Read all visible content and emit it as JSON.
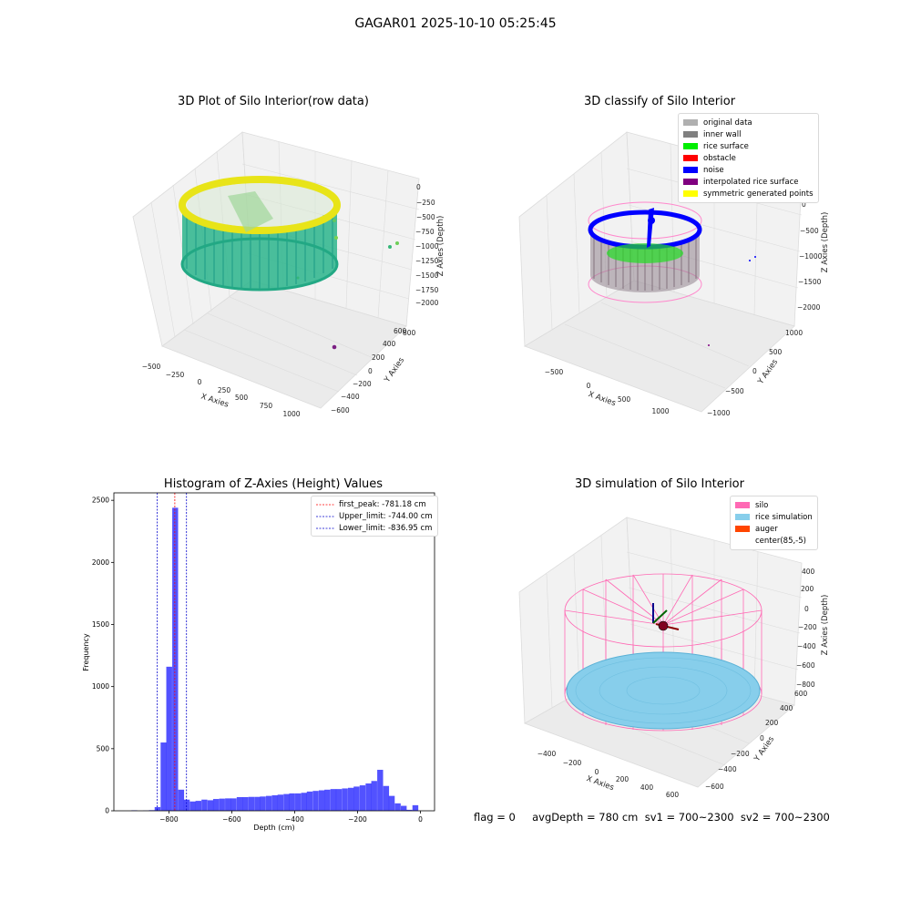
{
  "figure": {
    "title": "GAGAR01 2025-10-10 05:25:45"
  },
  "panel_raw": {
    "title": "3D Plot of Silo Interior(row data)",
    "xlabel": "X Axies",
    "ylabel": "Y Axies",
    "zlabel": "Z Axies (Depth)",
    "xticks": [
      "−500",
      "−250",
      "0",
      "250",
      "500",
      "750",
      "1000"
    ],
    "yticks": [
      "−600",
      "−400",
      "−200",
      "0",
      "200",
      "400",
      "600",
      "800"
    ],
    "zticks": [
      "0",
      "−250",
      "−500",
      "−750",
      "−1000",
      "−1250",
      "−1500",
      "−1750",
      "−2000"
    ]
  },
  "panel_classify": {
    "title": "3D classify of Silo Interior",
    "xlabel": "X Axies",
    "ylabel": "Y Axies",
    "zlabel": "Z Axies (Depth)",
    "xticks": [
      "−500",
      "0",
      "500",
      "1000"
    ],
    "yticks": [
      "−1000",
      "−500",
      "0",
      "500",
      "1000"
    ],
    "zticks": [
      "0",
      "−500",
      "−1000",
      "−1500",
      "−2000"
    ],
    "legend": [
      {
        "label": "original data",
        "color": "#b0b0b0"
      },
      {
        "label": "inner wall",
        "color": "#808080"
      },
      {
        "label": "rice surface",
        "color": "#00ee00"
      },
      {
        "label": "obstacle",
        "color": "#ff0000"
      },
      {
        "label": "noise",
        "color": "#0000ff"
      },
      {
        "label": "interpolated rice surface",
        "color": "#800080"
      },
      {
        "label": "symmetric generated points",
        "color": "#ffff00"
      }
    ]
  },
  "panel_sim": {
    "title": "3D simulation of Silo Interior",
    "xlabel": "X Axies",
    "ylabel": "Y Axies",
    "zlabel": "Z Axies (Depth)",
    "xticks": [
      "−400",
      "−200",
      "0",
      "200",
      "400",
      "600"
    ],
    "yticks": [
      "−600",
      "−400",
      "−200",
      "0",
      "200",
      "400",
      "600"
    ],
    "zticks": [
      "400",
      "200",
      "0",
      "−200",
      "−400",
      "−600",
      "−800"
    ],
    "legend": [
      {
        "label": "silo",
        "color": "#ff69b4"
      },
      {
        "label": "rice simulation",
        "color": "#87ceeb"
      },
      {
        "label": "auger",
        "color": "#ff4500"
      },
      {
        "label": "center(85,-5)",
        "color": ""
      }
    ]
  },
  "footer": {
    "text": "flag = 0     avgDepth = 780 cm  sv1 = 700~2300  sv2 = 700~2300"
  },
  "chart_data": {
    "type": "bar",
    "title": "Histogram of Z-Axies (Height) Values",
    "xlabel": "Depth (cm)",
    "ylabel": "Frequency",
    "xlim": [
      -975,
      45
    ],
    "ylim": [
      0,
      2560
    ],
    "xticks": [
      -800,
      -600,
      -400,
      -200,
      0
    ],
    "xtick_labels": [
      "−800",
      "−600",
      "−400",
      "−200",
      "0"
    ],
    "yticks": [
      0,
      500,
      1000,
      1500,
      2000,
      2500
    ],
    "bar_color": "#0000ff",
    "bin_width": 18.6,
    "bins": [
      [
        -910,
        4
      ],
      [
        -873,
        2
      ],
      [
        -854,
        5
      ],
      [
        -836,
        30
      ],
      [
        -817,
        550
      ],
      [
        -799,
        1160
      ],
      [
        -780,
        2440
      ],
      [
        -761,
        170
      ],
      [
        -743,
        90
      ],
      [
        -724,
        75
      ],
      [
        -706,
        80
      ],
      [
        -687,
        90
      ],
      [
        -668,
        85
      ],
      [
        -650,
        95
      ],
      [
        -631,
        98
      ],
      [
        -612,
        100
      ],
      [
        -594,
        100
      ],
      [
        -575,
        110
      ],
      [
        -557,
        110
      ],
      [
        -538,
        112
      ],
      [
        -519,
        112
      ],
      [
        -501,
        115
      ],
      [
        -482,
        120
      ],
      [
        -463,
        125
      ],
      [
        -445,
        130
      ],
      [
        -426,
        135
      ],
      [
        -408,
        140
      ],
      [
        -389,
        140
      ],
      [
        -370,
        145
      ],
      [
        -352,
        155
      ],
      [
        -333,
        160
      ],
      [
        -314,
        165
      ],
      [
        -296,
        170
      ],
      [
        -277,
        175
      ],
      [
        -259,
        175
      ],
      [
        -240,
        180
      ],
      [
        -221,
        185
      ],
      [
        -203,
        195
      ],
      [
        -184,
        205
      ],
      [
        -165,
        220
      ],
      [
        -147,
        240
      ],
      [
        -128,
        330
      ],
      [
        -109,
        200
      ],
      [
        -91,
        120
      ],
      [
        -72,
        60
      ],
      [
        -53,
        40
      ],
      [
        -35,
        8
      ],
      [
        -16,
        45
      ]
    ],
    "vlines": [
      {
        "x": -781.18,
        "color": "#ff0000",
        "label": "first_peak: -781.18 cm"
      },
      {
        "x": -744.0,
        "color": "#0000cc",
        "label": "Upper_limit: -744.00 cm"
      },
      {
        "x": -836.95,
        "color": "#0000cc",
        "label": "Lower_limit: -836.95 cm"
      }
    ],
    "legend_position": "upper right"
  }
}
